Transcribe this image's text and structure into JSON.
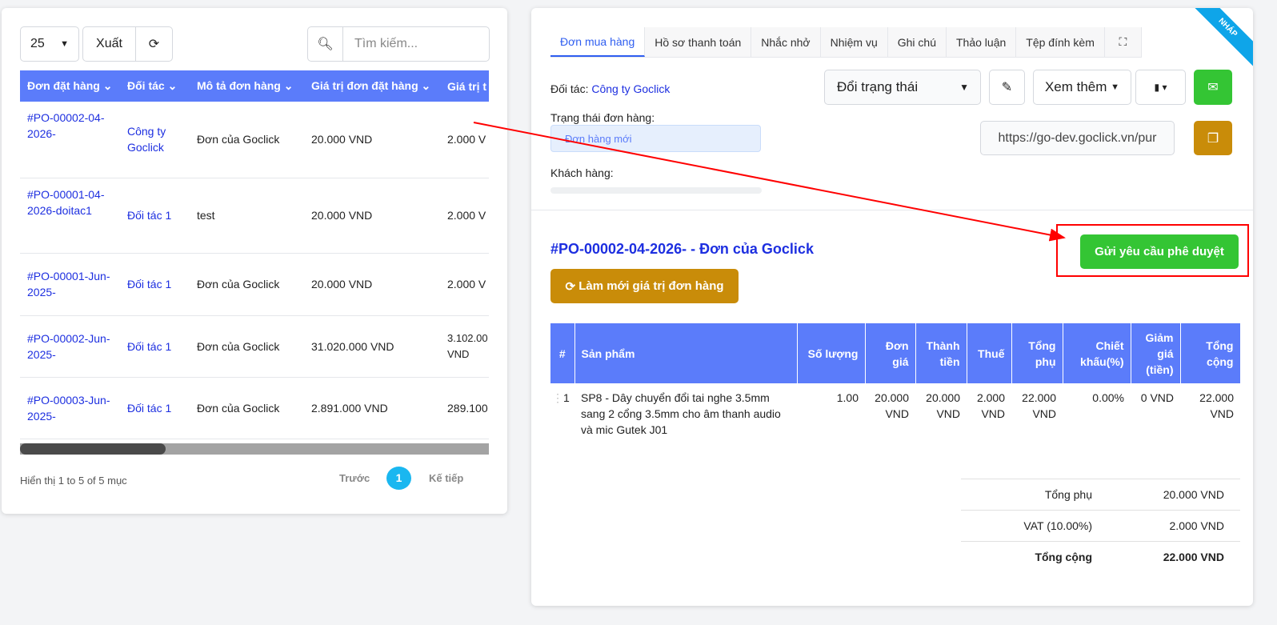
{
  "left": {
    "page_size": "25",
    "export_label": "Xuất",
    "search_placeholder": "Tìm kiếm...",
    "columns": [
      "Đơn đặt hàng",
      "Đối tác",
      "Mô tả đơn hàng",
      "Giá trị đơn đặt hàng",
      "Giá trị t"
    ],
    "rows": [
      {
        "code": "#PO-00002-04-2026-",
        "partner": "Công ty Goclick",
        "desc": "Đơn của Goclick",
        "value": "20.000 VND",
        "tax": "2.000 V"
      },
      {
        "code": "#PO-00001-04-2026-doitac1",
        "partner": "Đối tác 1",
        "desc": "test",
        "value": "20.000 VND",
        "tax": "2.000 V"
      },
      {
        "code": "#PO-00001-Jun-2025-",
        "partner": "Đối tác 1",
        "desc": "Đơn của Goclick",
        "value": "20.000 VND",
        "tax": "2.000 V"
      },
      {
        "code": "#PO-00002-Jun-2025-",
        "partner": "Đối tác 1",
        "desc": "Đơn của Goclick",
        "value": "31.020.000 VND",
        "tax": "3.102.00 VND"
      },
      {
        "code": "#PO-00003-Jun-2025-",
        "partner": "Đối tác 1",
        "desc": "Đơn của Goclick",
        "value": "2.891.000 VND",
        "tax": "289.100"
      }
    ],
    "footer_info": "Hiển thị 1 to 5 of 5 mục",
    "prev": "Trước",
    "page": "1",
    "next": "Kế tiếp"
  },
  "right": {
    "ribbon": "NHÁP",
    "tabs": [
      "Đơn mua hàng",
      "Hồ sơ thanh toán",
      "Nhắc nhở",
      "Nhiệm vụ",
      "Ghi chú",
      "Thảo luận",
      "Tệp đính kèm"
    ],
    "partner_label": "Đối tác:",
    "partner": "Công ty Goclick",
    "status_label": "Trạng thái đơn hàng:",
    "status": "Đơn hàng mới",
    "customer_label": "Khách hàng:",
    "change_status": "Đổi trạng thái",
    "more": "Xem thêm",
    "url": "https://go-dev.goclick.vn/pur",
    "title": "#PO-00002-04-2026- - Đơn của Goclick",
    "refresh": "Làm mới giá trị đơn hàng",
    "approve": "Gửi yêu cầu phê duyệt",
    "columns": [
      "#",
      "Sản phẩm",
      "Số lượng",
      "Đơn giá",
      "Thành tiền",
      "Thuế",
      "Tổng phụ",
      "Chiết khấu(%)",
      "Giảm giá (tiền)",
      "Tổng cộng"
    ],
    "items": [
      {
        "no": "1",
        "product": "SP8 - Dây chuyển đổi tai nghe 3.5mm sang 2 cổng 3.5mm cho âm thanh audio và mic Gutek J01",
        "qty": "1.00",
        "price": "20.000 VND",
        "amount": "20.000 VND",
        "tax": "2.000 VND",
        "subtotal": "22.000 VND",
        "discount_pct": "0.00%",
        "discount": "0 VND",
        "total": "22.000 VND"
      }
    ],
    "totals": [
      {
        "label": "Tổng phụ",
        "value": "20.000 VND"
      },
      {
        "label": "VAT (10.00%)",
        "value": "2.000 VND"
      },
      {
        "label": "Tổng cộng",
        "value": "22.000 VND"
      }
    ]
  },
  "colors": {
    "header": "#5b7cfa",
    "green": "#34c534",
    "gold": "#c98c09",
    "ribbon": "#0ea5e9",
    "annotation": "#ff0000"
  }
}
